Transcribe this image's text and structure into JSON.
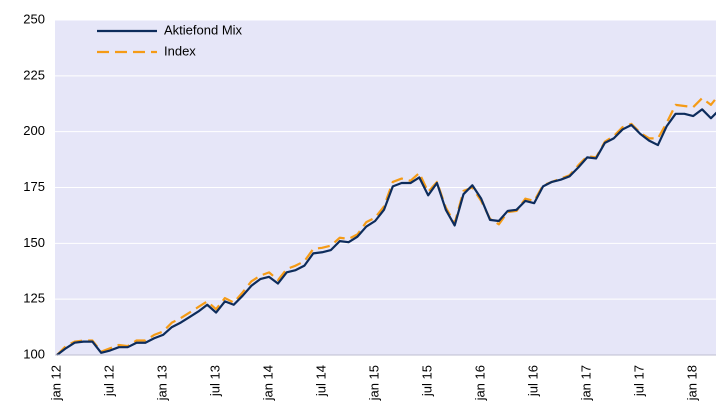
{
  "chart_data": {
    "type": "line",
    "categories": [
      "jan 12",
      null,
      null,
      null,
      null,
      null,
      "jul 12",
      null,
      null,
      null,
      null,
      null,
      "jan 13",
      null,
      null,
      null,
      null,
      null,
      "jul 13",
      null,
      null,
      null,
      null,
      null,
      "jan 14",
      null,
      null,
      null,
      null,
      null,
      "jul 14",
      null,
      null,
      null,
      null,
      null,
      "jan 15",
      null,
      null,
      null,
      null,
      null,
      "jul 15",
      null,
      null,
      null,
      null,
      null,
      "jan 16",
      null,
      null,
      null,
      null,
      null,
      "jul 16",
      null,
      null,
      null,
      null,
      null,
      "jan 17",
      null,
      null,
      null,
      null,
      null,
      "jul 17",
      null,
      null,
      null,
      null,
      null,
      "jan 18",
      null,
      null,
      null
    ],
    "series": [
      {
        "name": "Aktiefond Mix",
        "color": "#0d2c5c",
        "dash": false,
        "values": [
          100,
          103,
          105.5,
          106,
          106,
          101,
          102,
          103.5,
          103.5,
          105.5,
          105.5,
          107.5,
          109,
          112.5,
          114.5,
          117,
          119.5,
          122.5,
          119,
          124,
          122.5,
          126.5,
          131,
          134,
          135,
          132,
          137,
          138,
          140,
          145.5,
          146,
          147,
          151,
          150.5,
          153,
          157.5,
          160,
          165,
          175.5,
          177,
          177,
          179.5,
          171.5,
          177,
          165,
          158,
          172,
          176,
          170,
          160.5,
          160,
          164.5,
          165,
          169,
          168,
          175.5,
          177.5,
          178.5,
          180,
          184,
          188.5,
          188,
          195,
          197,
          201,
          203,
          199,
          196,
          194,
          202.5,
          208,
          208,
          207,
          210,
          206,
          210
        ]
      },
      {
        "name": "Index",
        "color": "#f59b16",
        "dash": true,
        "values": [
          100,
          104,
          106,
          106.5,
          106.5,
          101.5,
          103,
          104.5,
          104,
          106.5,
          106.5,
          109,
          110.5,
          114.5,
          116.5,
          119,
          121.5,
          124,
          120.5,
          125.5,
          123.5,
          128,
          133,
          135.5,
          137,
          133.5,
          138.5,
          140,
          142,
          147.5,
          148,
          149,
          152.5,
          152,
          154,
          159.5,
          161.5,
          166.5,
          177.5,
          179,
          178,
          181.5,
          173,
          177.5,
          166,
          159,
          173.5,
          175,
          169,
          161,
          158.5,
          164,
          164.5,
          170,
          169,
          176,
          177.5,
          179,
          180.5,
          185,
          189,
          188.5,
          195.5,
          198,
          202,
          203.5,
          199.5,
          197,
          197,
          204,
          212,
          211.5,
          211,
          215,
          212,
          217
        ]
      }
    ],
    "ylim": [
      100,
      250
    ],
    "yticks": [
      100,
      125,
      150,
      175,
      200,
      225,
      250
    ],
    "grid": true,
    "legend": "upper left",
    "background": "#e6e6f8"
  }
}
